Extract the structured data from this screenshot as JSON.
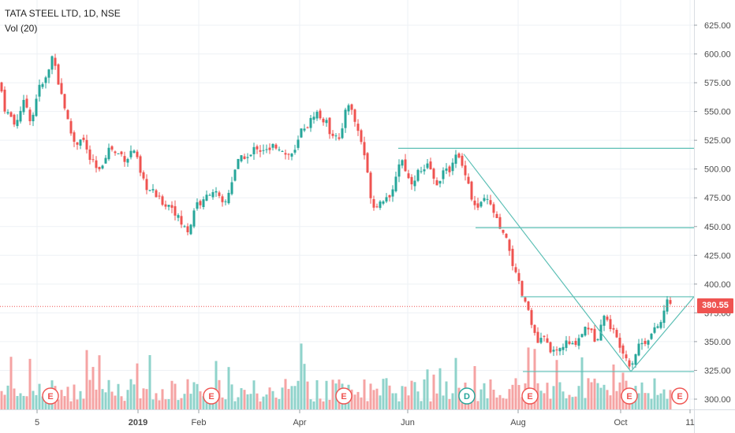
{
  "header": {
    "symbol_line": "TATA STEEL LTD, 1D, NSE",
    "volume_line": "Vol (20)"
  },
  "last_price": "380.55",
  "colors": {
    "up": "#26a69a",
    "down": "#ef5350",
    "up_volume": "#8fd3cb",
    "down_volume": "#f5a3a3",
    "trendline": "#5bbfb5",
    "grid": "#eef1f5"
  },
  "chart_data": {
    "type": "candlestick",
    "ylim": [
      293,
      640
    ],
    "y_ticks": [
      "625.00",
      "600.00",
      "575.00",
      "550.00",
      "525.00",
      "500.00",
      "475.00",
      "450.00",
      "425.00",
      "400.00",
      "375.00",
      "350.00",
      "325.00",
      "300.00"
    ],
    "x_ticks": [
      "5",
      "2019",
      "Feb",
      "Apr",
      "Jun",
      "Aug",
      "Oct",
      "11"
    ],
    "grid": true,
    "last_price_line": 380.55,
    "event_markers": [
      {
        "label": "E",
        "type": "earnings"
      },
      {
        "label": "E",
        "type": "earnings"
      },
      {
        "label": "E",
        "type": "earnings"
      },
      {
        "label": "D",
        "type": "dividend"
      },
      {
        "label": "E",
        "type": "earnings"
      },
      {
        "label": "E",
        "type": "earnings"
      },
      {
        "label": "E",
        "type": "earnings"
      }
    ],
    "close_path": [
      [
        0,
        575
      ],
      [
        4,
        560
      ],
      [
        8,
        545
      ],
      [
        12,
        552
      ],
      [
        16,
        538
      ],
      [
        20,
        540
      ],
      [
        24,
        548
      ],
      [
        28,
        555
      ],
      [
        32,
        560
      ],
      [
        36,
        548
      ],
      [
        40,
        540
      ],
      [
        44,
        555
      ],
      [
        48,
        570
      ],
      [
        52,
        572
      ],
      [
        56,
        575
      ],
      [
        60,
        582
      ],
      [
        64,
        590
      ],
      [
        68,
        605
      ],
      [
        72,
        580
      ],
      [
        76,
        570
      ],
      [
        80,
        560
      ],
      [
        84,
        548
      ],
      [
        88,
        535
      ],
      [
        92,
        528
      ],
      [
        96,
        520
      ],
      [
        100,
        525
      ],
      [
        104,
        530
      ],
      [
        108,
        520
      ],
      [
        112,
        512
      ],
      [
        116,
        505
      ],
      [
        120,
        505
      ],
      [
        124,
        495
      ],
      [
        128,
        500
      ],
      [
        132,
        510
      ],
      [
        136,
        515
      ],
      [
        140,
        520
      ],
      [
        144,
        515
      ],
      [
        148,
        512
      ],
      [
        152,
        515
      ],
      [
        156,
        510
      ],
      [
        160,
        508
      ],
      [
        164,
        512
      ],
      [
        168,
        518
      ],
      [
        172,
        515
      ],
      [
        176,
        500
      ],
      [
        180,
        490
      ],
      [
        184,
        488
      ],
      [
        188,
        480
      ],
      [
        192,
        482
      ],
      [
        196,
        478
      ],
      [
        200,
        475
      ],
      [
        204,
        472
      ],
      [
        208,
        470
      ],
      [
        212,
        468
      ],
      [
        216,
        470
      ],
      [
        220,
        465
      ],
      [
        224,
        460
      ],
      [
        228,
        455
      ],
      [
        232,
        450
      ],
      [
        236,
        448
      ],
      [
        240,
        445
      ],
      [
        244,
        460
      ],
      [
        248,
        470
      ],
      [
        252,
        472
      ],
      [
        256,
        468
      ],
      [
        260,
        475
      ],
      [
        264,
        478
      ],
      [
        268,
        482
      ],
      [
        272,
        480
      ],
      [
        276,
        478
      ],
      [
        280,
        470
      ],
      [
        284,
        468
      ],
      [
        288,
        475
      ],
      [
        292,
        485
      ],
      [
        296,
        495
      ],
      [
        300,
        505
      ],
      [
        304,
        508
      ],
      [
        308,
        510
      ],
      [
        312,
        512
      ],
      [
        316,
        508
      ],
      [
        320,
        515
      ],
      [
        324,
        520
      ],
      [
        328,
        518
      ],
      [
        332,
        515
      ],
      [
        336,
        520
      ],
      [
        340,
        512
      ],
      [
        344,
        518
      ],
      [
        348,
        522
      ],
      [
        352,
        518
      ],
      [
        356,
        520
      ],
      [
        360,
        515
      ],
      [
        364,
        510
      ],
      [
        368,
        515
      ],
      [
        372,
        512
      ],
      [
        376,
        518
      ],
      [
        380,
        530
      ],
      [
        384,
        538
      ],
      [
        388,
        535
      ],
      [
        392,
        540
      ],
      [
        396,
        545
      ],
      [
        400,
        550
      ],
      [
        404,
        548
      ],
      [
        408,
        540
      ],
      [
        412,
        545
      ],
      [
        416,
        535
      ],
      [
        420,
        530
      ],
      [
        424,
        532
      ],
      [
        428,
        530
      ],
      [
        432,
        520
      ],
      [
        436,
        545
      ],
      [
        440,
        560
      ],
      [
        444,
        555
      ],
      [
        448,
        545
      ],
      [
        452,
        538
      ],
      [
        456,
        528
      ],
      [
        460,
        520
      ],
      [
        464,
        505
      ],
      [
        468,
        485
      ],
      [
        472,
        470
      ],
      [
        476,
        465
      ],
      [
        480,
        475
      ],
      [
        484,
        468
      ],
      [
        488,
        480
      ],
      [
        492,
        475
      ],
      [
        496,
        470
      ],
      [
        500,
        490
      ],
      [
        504,
        500
      ],
      [
        508,
        510
      ],
      [
        512,
        505
      ],
      [
        516,
        495
      ],
      [
        520,
        488
      ],
      [
        524,
        490
      ],
      [
        528,
        495
      ],
      [
        532,
        500
      ],
      [
        536,
        495
      ],
      [
        540,
        500
      ],
      [
        544,
        505
      ],
      [
        548,
        495
      ],
      [
        552,
        485
      ],
      [
        556,
        490
      ],
      [
        560,
        495
      ],
      [
        564,
        500
      ],
      [
        568,
        495
      ],
      [
        572,
        505
      ],
      [
        576,
        510
      ],
      [
        580,
        512
      ],
      [
        584,
        505
      ],
      [
        588,
        500
      ],
      [
        592,
        495
      ],
      [
        596,
        480
      ],
      [
        600,
        470
      ],
      [
        604,
        465
      ],
      [
        608,
        468
      ],
      [
        612,
        470
      ],
      [
        616,
        475
      ],
      [
        620,
        470
      ],
      [
        624,
        465
      ],
      [
        628,
        460
      ],
      [
        632,
        450
      ],
      [
        636,
        445
      ],
      [
        640,
        440
      ],
      [
        644,
        435
      ],
      [
        648,
        425
      ],
      [
        652,
        410
      ],
      [
        656,
        405
      ],
      [
        660,
        395
      ],
      [
        664,
        385
      ],
      [
        668,
        380
      ],
      [
        672,
        375
      ],
      [
        676,
        360
      ],
      [
        680,
        350
      ],
      [
        684,
        348
      ],
      [
        688,
        355
      ],
      [
        692,
        350
      ],
      [
        696,
        345
      ],
      [
        700,
        342
      ],
      [
        704,
        338
      ],
      [
        708,
        342
      ],
      [
        712,
        345
      ],
      [
        716,
        348
      ],
      [
        720,
        350
      ],
      [
        724,
        345
      ],
      [
        728,
        348
      ],
      [
        732,
        352
      ],
      [
        736,
        355
      ],
      [
        740,
        360
      ],
      [
        744,
        365
      ],
      [
        748,
        360
      ],
      [
        752,
        355
      ],
      [
        756,
        350
      ],
      [
        760,
        360
      ],
      [
        764,
        375
      ],
      [
        768,
        370
      ],
      [
        772,
        365
      ],
      [
        776,
        362
      ],
      [
        780,
        355
      ],
      [
        784,
        350
      ],
      [
        788,
        345
      ],
      [
        792,
        340
      ],
      [
        796,
        332
      ],
      [
        800,
        330
      ],
      [
        804,
        335
      ],
      [
        808,
        345
      ],
      [
        812,
        350
      ],
      [
        816,
        348
      ],
      [
        820,
        352
      ],
      [
        824,
        355
      ],
      [
        828,
        358
      ],
      [
        832,
        362
      ],
      [
        836,
        365
      ],
      [
        840,
        368
      ],
      [
        844,
        385
      ],
      [
        848,
        385
      ],
      [
        852,
        380.55
      ]
    ],
    "trendlines": [
      {
        "from": [
          505,
          518
        ],
        "to": [
          880,
          518
        ]
      },
      {
        "from": [
          603,
          449
        ],
        "to": [
          880,
          449
        ]
      },
      {
        "from": [
          660,
          389
        ],
        "to": [
          880,
          389
        ]
      },
      {
        "from": [
          663,
          324
        ],
        "to": [
          880,
          324
        ]
      },
      {
        "from": [
          588,
          513
        ],
        "to": [
          800,
          324
        ]
      },
      {
        "from": [
          800,
          324
        ],
        "to": [
          880,
          389
        ]
      }
    ]
  }
}
